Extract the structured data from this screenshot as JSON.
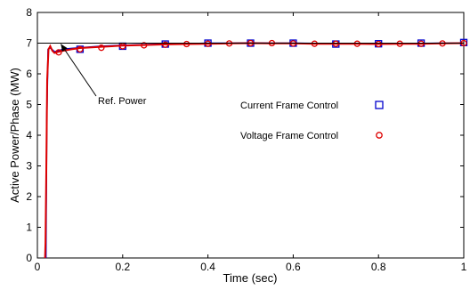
{
  "chart_data": {
    "type": "line",
    "xlabel": "Time (sec)",
    "ylabel": "Active Power/Phase (MW)",
    "xlim": [
      0,
      1
    ],
    "ylim": [
      0,
      8
    ],
    "xticks": [
      "0",
      "0.2",
      "0.4",
      "0.6",
      "0.8",
      "1"
    ],
    "yticks": [
      "0",
      "1",
      "2",
      "3",
      "4",
      "5",
      "6",
      "7",
      "8"
    ],
    "grid": false,
    "legend_position": "center-right",
    "reference": {
      "label": "Ref. Power",
      "value": 7
    },
    "series": [
      {
        "name": "Current Frame Control",
        "color": "#0000cc",
        "marker": "square",
        "x": [
          0.02,
          0.022,
          0.025,
          0.03,
          0.04,
          0.05,
          0.06,
          0.08,
          0.1,
          0.15,
          0.2,
          0.25,
          0.3,
          0.35,
          0.4,
          0.45,
          0.5,
          0.55,
          0.6,
          0.65,
          0.7,
          0.75,
          0.8,
          0.85,
          0.9,
          0.95,
          1.0
        ],
        "y": [
          0.0,
          4.5,
          6.8,
          6.85,
          6.72,
          6.75,
          6.8,
          6.83,
          6.85,
          6.9,
          6.93,
          6.95,
          6.97,
          6.98,
          7.0,
          7.0,
          7.01,
          7.0,
          7.0,
          6.99,
          6.98,
          6.98,
          6.98,
          6.98,
          6.99,
          7.0,
          7.0
        ],
        "marker_x": [
          0.1,
          0.2,
          0.3,
          0.4,
          0.5,
          0.6,
          0.7,
          0.8,
          0.9,
          1.0
        ],
        "marker_y": [
          6.8,
          6.9,
          6.97,
          7.0,
          7.0,
          7.0,
          6.97,
          6.98,
          7.0,
          7.02
        ]
      },
      {
        "name": "Voltage Frame Control",
        "color": "#dd0000",
        "marker": "circle",
        "x": [
          0.018,
          0.019,
          0.021,
          0.023,
          0.026,
          0.03,
          0.035,
          0.04,
          0.05,
          0.06,
          0.08,
          0.1,
          0.15,
          0.2,
          0.25,
          0.3,
          0.35,
          0.4,
          0.45,
          0.5,
          0.55,
          0.6,
          0.65,
          0.7,
          0.75,
          0.8,
          0.85,
          0.9,
          0.95,
          1.0
        ],
        "y": [
          0.0,
          0.5,
          3.1,
          5.8,
          6.8,
          6.9,
          6.75,
          6.68,
          6.72,
          6.75,
          6.8,
          6.84,
          6.88,
          6.92,
          6.94,
          6.96,
          6.97,
          6.98,
          6.99,
          7.0,
          6.99,
          6.99,
          6.98,
          6.98,
          6.98,
          6.97,
          6.98,
          6.98,
          6.99,
          7.0
        ],
        "marker_x": [
          0.05,
          0.1,
          0.15,
          0.2,
          0.25,
          0.3,
          0.35,
          0.4,
          0.45,
          0.5,
          0.55,
          0.6,
          0.65,
          0.7,
          0.75,
          0.8,
          0.85,
          0.9,
          0.95,
          1.0
        ],
        "marker_y": [
          6.7,
          6.8,
          6.85,
          6.9,
          6.93,
          6.95,
          6.97,
          6.98,
          6.99,
          7.0,
          7.0,
          6.99,
          6.98,
          6.98,
          6.98,
          6.97,
          6.98,
          6.98,
          6.99,
          7.0
        ]
      }
    ]
  }
}
